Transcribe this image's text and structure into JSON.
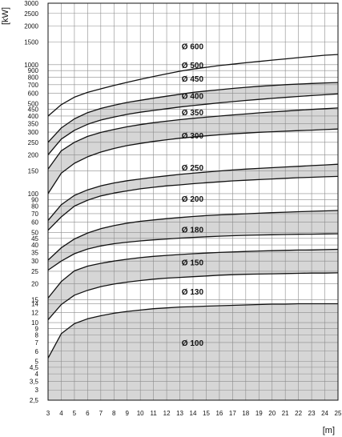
{
  "chart_data": {
    "type": "area",
    "title": "",
    "xlabel": "[m]",
    "ylabel": "[kW]",
    "x_scale": "linear",
    "y_scale": "log",
    "xlim": [
      3,
      25
    ],
    "ylim": [
      2.5,
      3000
    ],
    "grid": true,
    "x_ticks": [
      3,
      4,
      5,
      6,
      7,
      8,
      9,
      10,
      11,
      12,
      13,
      14,
      15,
      16,
      17,
      18,
      19,
      20,
      21,
      22,
      23,
      24,
      25
    ],
    "x_tick_labels": [
      "3",
      "4",
      "5",
      "6",
      "7",
      "8",
      "9",
      "10",
      "11",
      "12",
      "13",
      "14",
      "15",
      "16",
      "17",
      "18",
      "19",
      "20",
      "21",
      "22",
      "23",
      "24",
      "25"
    ],
    "y_ticks": [
      2.5,
      3,
      3.5,
      4,
      4.5,
      5,
      6,
      7,
      8,
      9,
      10,
      12,
      14,
      15,
      20,
      25,
      30,
      35,
      40,
      45,
      50,
      60,
      70,
      80,
      90,
      100,
      150,
      200,
      250,
      300,
      350,
      400,
      450,
      500,
      600,
      700,
      800,
      900,
      1000,
      1500,
      2000,
      2500,
      3000
    ],
    "y_tick_labels": [
      "2,5",
      "3",
      "3,5",
      "4",
      "4,5",
      "5",
      "6",
      "7",
      "8",
      "9",
      "10",
      "12",
      "14",
      "15",
      "20",
      "25",
      "30",
      "35",
      "40",
      "45",
      "50",
      "60",
      "70",
      "80",
      "90",
      "100",
      "150",
      "200",
      "250",
      "300",
      "350",
      "400",
      "450",
      "500",
      "600",
      "700",
      "800",
      "900",
      "1000",
      "1500",
      "2000",
      "2500",
      "3000"
    ],
    "x": [
      3,
      4,
      5,
      6,
      7,
      8,
      9,
      10,
      11,
      12,
      13,
      14,
      15,
      16,
      17,
      18,
      19,
      20,
      21,
      22,
      23,
      24,
      25
    ],
    "curves": [
      {
        "id": "c01",
        "values": [
          5.3,
          8.2,
          9.8,
          10.7,
          11.3,
          11.8,
          12.2,
          12.5,
          12.8,
          13.0,
          13.2,
          13.3,
          13.4,
          13.5,
          13.6,
          13.7,
          13.8,
          13.9,
          13.9,
          14.0,
          14.0,
          14.0,
          14.0
        ]
      },
      {
        "id": "c02",
        "values": [
          10.5,
          13.8,
          16.3,
          17.8,
          19.0,
          19.9,
          20.6,
          21.2,
          21.7,
          22.1,
          22.4,
          22.7,
          23.0,
          23.3,
          23.5,
          23.7,
          23.8,
          23.9,
          24.0,
          24.1,
          24.2,
          24.2,
          24.3
        ]
      },
      {
        "id": "c03",
        "values": [
          15.5,
          20.8,
          25.2,
          27.4,
          28.8,
          30.0,
          31.0,
          31.9,
          32.6,
          33.2,
          33.7,
          34.2,
          34.6,
          35.0,
          35.3,
          35.6,
          35.9,
          36.1,
          36.3,
          36.5,
          36.6,
          36.8,
          37.0
        ]
      },
      {
        "id": "c04",
        "values": [
          25.5,
          30.0,
          34.2,
          37.2,
          39.3,
          40.9,
          42.0,
          43.0,
          43.8,
          44.5,
          45.2,
          45.8,
          46.3,
          46.8,
          47.2,
          47.5,
          47.8,
          48.0,
          48.2,
          48.4,
          48.5,
          48.7,
          48.8
        ]
      },
      {
        "id": "c05",
        "values": [
          30.5,
          38.0,
          44.5,
          49.5,
          53.5,
          56.5,
          59.0,
          61.0,
          62.5,
          64.0,
          65.3,
          66.5,
          67.5,
          68.4,
          69.1,
          69.8,
          70.5,
          71.2,
          71.8,
          72.4,
          73.0,
          73.5,
          74.0
        ]
      },
      {
        "id": "c06",
        "values": [
          52.0,
          66.0,
          80.0,
          89.0,
          96.0,
          101.0,
          105.0,
          109.0,
          112.0,
          115.0,
          117.0,
          119.5,
          121.5,
          123.5,
          125.5,
          127.0,
          128.5,
          130.0,
          131.5,
          133.0,
          134.0,
          135.0,
          136.0
        ]
      },
      {
        "id": "c07",
        "values": [
          62.0,
          82.0,
          97.0,
          107.0,
          115.0,
          121.0,
          126.0,
          130.0,
          134.0,
          137.5,
          141.0,
          144.0,
          147.0,
          150.0,
          152.5,
          155.0,
          157.0,
          159.0,
          161.0,
          163.0,
          165.0,
          167.0,
          169.0
        ]
      },
      {
        "id": "c08",
        "values": [
          100.0,
          144.0,
          172.0,
          193.0,
          210.0,
          224.0,
          236.0,
          245.0,
          254.0,
          262.0,
          269.0,
          275.0,
          281.0,
          286.0,
          291.0,
          295.0,
          299.0,
          302.0,
          305.0,
          308.0,
          311.0,
          314.0,
          317.0
        ]
      },
      {
        "id": "c09",
        "values": [
          155.0,
          215.0,
          250.0,
          278.0,
          298.0,
          315.0,
          330.0,
          343.0,
          355.0,
          365.0,
          375.0,
          384.0,
          392.0,
          400.0,
          408.0,
          415.0,
          423.0,
          430.0,
          437.0,
          444.0,
          450.0,
          456.0,
          462.0
        ]
      },
      {
        "id": "c10",
        "values": [
          200.0,
          265.0,
          310.0,
          345.0,
          372.0,
          393.0,
          412.0,
          428.0,
          442.0,
          456.0,
          470.0,
          482.0,
          494.0,
          506.0,
          517.0,
          528.0,
          538.0,
          548.0,
          558.0,
          567.0,
          576.0,
          585.0,
          594.0
        ]
      },
      {
        "id": "c11",
        "values": [
          250.0,
          323.0,
          380.0,
          425.0,
          458.0,
          485.0,
          510.0,
          530.0,
          550.0,
          570.0,
          590.0,
          610.0,
          625.0,
          640.0,
          655.0,
          668.0,
          680.0,
          690.0,
          700.0,
          708.0,
          715.0,
          722.0,
          728.0
        ]
      },
      {
        "id": "c12",
        "values": [
          400.0,
          490.0,
          560.0,
          610.0,
          650.0,
          690.0,
          730.0,
          770.0,
          810.0,
          850.0,
          890.0,
          925.0,
          955.0,
          985.0,
          1010.0,
          1035.0,
          1060.0,
          1085.0,
          1110.0,
          1135.0,
          1160.0,
          1185.0,
          1200.0
        ]
      }
    ],
    "shaded_bands": [
      {
        "from": null,
        "to": "c01"
      },
      {
        "from": "c02",
        "to": "c03"
      },
      {
        "from": "c04",
        "to": "c05"
      },
      {
        "from": "c06",
        "to": "c07"
      },
      {
        "from": "c08",
        "to": "c09"
      },
      {
        "from": "c10",
        "to": "c11"
      }
    ],
    "band_labels": [
      {
        "label": "Ø 100",
        "x": 13.5,
        "y": 7.0
      },
      {
        "label": "Ø 130",
        "x": 13.5,
        "y": 17.5
      },
      {
        "label": "Ø 150",
        "x": 13.5,
        "y": 29.5
      },
      {
        "label": "Ø 180",
        "x": 13.5,
        "y": 53.0
      },
      {
        "label": "Ø 200",
        "x": 13.5,
        "y": 92.0
      },
      {
        "label": "Ø 250",
        "x": 13.5,
        "y": 160.0
      },
      {
        "label": "Ø 300",
        "x": 13.5,
        "y": 283.0
      },
      {
        "label": "Ø 350",
        "x": 13.5,
        "y": 428.0
      },
      {
        "label": "Ø 400",
        "x": 13.5,
        "y": 575.0
      },
      {
        "label": "Ø 450",
        "x": 13.5,
        "y": 780.0
      },
      {
        "label": "Ø 500",
        "x": 13.5,
        "y": 1000.0
      },
      {
        "label": "Ø 600",
        "x": 13.5,
        "y": 1400.0
      }
    ],
    "colors": {
      "band_fill": "#d6d6d6",
      "curve": "#111111",
      "grid": "#8c8c8c",
      "axes": "#111111"
    }
  }
}
